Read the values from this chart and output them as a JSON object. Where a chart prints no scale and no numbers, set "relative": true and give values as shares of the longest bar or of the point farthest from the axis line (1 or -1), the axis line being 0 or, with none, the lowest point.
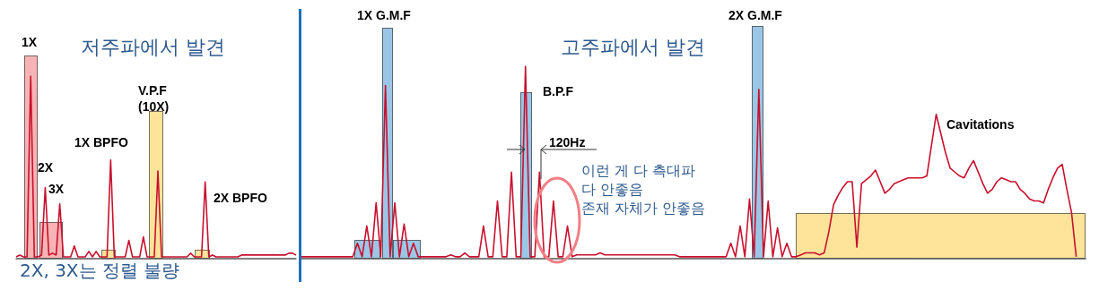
{
  "chart_data": [
    {
      "type": "line",
      "title": "저주파에서 발견",
      "relative": true,
      "tick_labels": false,
      "annotations": [
        "1X",
        "2X",
        "3X",
        "1X BPFO",
        "V.P.F\n(10X)",
        "2X BPFO",
        "2X, 3X는 정렬 불량"
      ],
      "categories": [
        null,
        null,
        null,
        null,
        null,
        null,
        null,
        null,
        null,
        null,
        null,
        null,
        null,
        null,
        null,
        null,
        null,
        null,
        null,
        null,
        null,
        null,
        null,
        null,
        null,
        null,
        null,
        null,
        null,
        null,
        null,
        null,
        null,
        null,
        null,
        null,
        null,
        null,
        null,
        null,
        null,
        null,
        null,
        null,
        null,
        null,
        null,
        null,
        null,
        null,
        null,
        null,
        null,
        null,
        null,
        null,
        null,
        null,
        null,
        null,
        null,
        null,
        null,
        null,
        null,
        null,
        null,
        null,
        null,
        null,
        null,
        null,
        null,
        null,
        null,
        null,
        null,
        null
      ],
      "series": [
        {
          "color": "#c8102e",
          "values": [
            0.01,
            0.02,
            0.01,
            0.01,
            1,
            0.01,
            0.01,
            0.02,
            0.39,
            0.02,
            0.03,
            0.02,
            0.3,
            0.01,
            0.01,
            0.01,
            0.07,
            0.01,
            0.01,
            0.01,
            0.04,
            0.01,
            0.04,
            0.01,
            0.01,
            0.01,
            0.54,
            0.01,
            0.01,
            0.01,
            0.01,
            0.1,
            0.01,
            0.01,
            0.01,
            0.12,
            0.01,
            0.01,
            0.01,
            0.48,
            0.01,
            0.01,
            0.01,
            0.01,
            0.01,
            0.01,
            0.01,
            0.01,
            0.03,
            0.01,
            0.01,
            0.01,
            0.42,
            0.01,
            0.02,
            0.01,
            0.01,
            0.01,
            0.01,
            0.01,
            0.01,
            0.01,
            0.02,
            0.02,
            0.02,
            0.02,
            0.02,
            0.02,
            0.02,
            0.02,
            0.02,
            0.02,
            0.02,
            0.02,
            0.02,
            0.03,
            0.03,
            0.02
          ]
        }
      ]
    },
    {
      "type": "line",
      "title": "고주파에서 발견",
      "relative": true,
      "tick_labels": false,
      "annotations": [
        "1X G.M.F",
        "B.P.F",
        "120Hz",
        "2X G.M.F",
        "Cavitations",
        "이런 게 다 측대파\n다 안좋음\n존재 자체가 안좋음"
      ],
      "categories": [
        null,
        null,
        null,
        null,
        null,
        null,
        null,
        null,
        null,
        null,
        null,
        null,
        null,
        null,
        null,
        null,
        null,
        null,
        null,
        null,
        null,
        null,
        null,
        null,
        null,
        null,
        null,
        null,
        null,
        null,
        null,
        null,
        null,
        null,
        null,
        null,
        null,
        null,
        null,
        null,
        null,
        null,
        null,
        null,
        null,
        null,
        null,
        null,
        null,
        null,
        null,
        null,
        null,
        null,
        null,
        null,
        null,
        null,
        null,
        null,
        null,
        null,
        null,
        null,
        null,
        null,
        null,
        null,
        null,
        null,
        null,
        null,
        null,
        null,
        null,
        null,
        null,
        null,
        null,
        null,
        null,
        null,
        null,
        null,
        null,
        null,
        null,
        null,
        null,
        null,
        null,
        null,
        null,
        null,
        null,
        null,
        null,
        null,
        null,
        null,
        null,
        null,
        null,
        null,
        null,
        null,
        null,
        null,
        null,
        null,
        null,
        null,
        null,
        null,
        null,
        null,
        null,
        null,
        null,
        null,
        null,
        null,
        null,
        null,
        null,
        null,
        null,
        null,
        null,
        null,
        null,
        null,
        null,
        null,
        null,
        null,
        null,
        null,
        null,
        null,
        null,
        null,
        null,
        null,
        null,
        null,
        null,
        null,
        null,
        null,
        null,
        null,
        null,
        null,
        null,
        null,
        null,
        null,
        null,
        null,
        null,
        null,
        null,
        null,
        null,
        null,
        null,
        null,
        null
      ],
      "series": [
        {
          "color": "#c8102e",
          "values": [
            0.01,
            0.01,
            0.01,
            0.01,
            0.01,
            0.01,
            0.01,
            0.01,
            0.01,
            0.01,
            0.01,
            0.01,
            0.08,
            0.01,
            0.17,
            0.01,
            0.29,
            0.01,
            0.9,
            0.01,
            0.29,
            0.01,
            0.18,
            0.01,
            0.08,
            0.01,
            0.01,
            0.01,
            0.01,
            0.01,
            0.01,
            0.01,
            0.02,
            0.01,
            0.01,
            0.03,
            0.01,
            0.01,
            0.01,
            0.17,
            0.01,
            0.01,
            0.3,
            0.01,
            0.01,
            0.45,
            0.01,
            0.01,
            1,
            0.01,
            0.01,
            0.45,
            0.01,
            0.01,
            0.3,
            0.01,
            0.01,
            0.17,
            0.01,
            0.02,
            0.02,
            0.02,
            0.02,
            0.02,
            0.03,
            0.02,
            0.02,
            0.02,
            0.02,
            0.02,
            0.02,
            0.02,
            0.02,
            0.02,
            0.02,
            0.02,
            0.02,
            0.02,
            0.02,
            0.02,
            0.02,
            0.01,
            0.01,
            0.01,
            0.01,
            0.01,
            0.01,
            0.01,
            0.01,
            0.01,
            0.01,
            0.01,
            0.08,
            0.01,
            0.17,
            0.01,
            0.31,
            0.01,
            0.88,
            0.01,
            0.3,
            0.01,
            0.16,
            0.01,
            0.08,
            0.01,
            0.01,
            0.02,
            0.03,
            0.03,
            0.03,
            0.02,
            0.03,
            0.14,
            0.28,
            0.33,
            0.37,
            0.4,
            0.4,
            0.06,
            0.39,
            0.41,
            0.43,
            0.46,
            0.4,
            0.34,
            0.36,
            0.39,
            0.4,
            0.41,
            0.42,
            0.42,
            0.42,
            0.42,
            0.43,
            0.59,
            0.75,
            0.65,
            0.55,
            0.47,
            0.45,
            0.43,
            0.42,
            0.47,
            0.51,
            0.45,
            0.39,
            0.34,
            0.36,
            0.4,
            0.42,
            0.41,
            0.4,
            0.4,
            0.36,
            0.34,
            0.31,
            0.3,
            0.3,
            0.29,
            0.36,
            0.42,
            0.47,
            0.49,
            0.36,
            0.24,
            0.01,
            null,
            null
          ]
        }
      ]
    }
  ]
}
